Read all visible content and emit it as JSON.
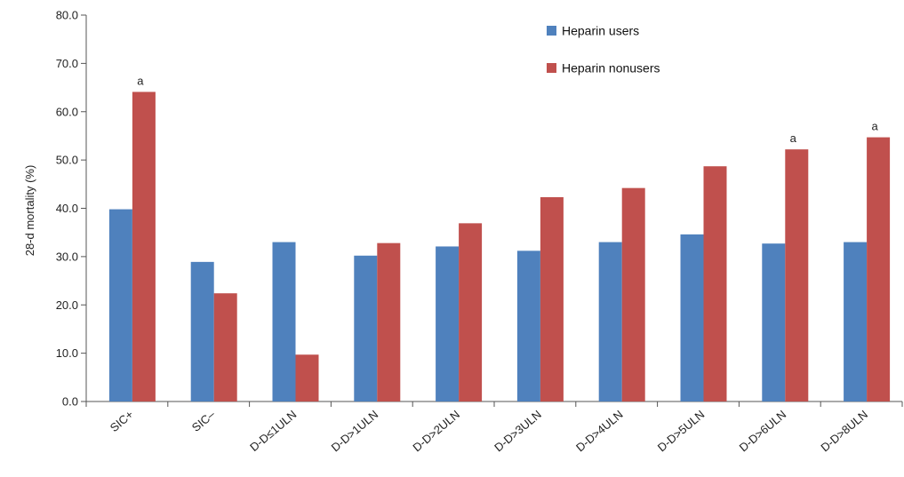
{
  "chart_data": {
    "type": "bar",
    "title": "",
    "xlabel": "",
    "ylabel": "28-d mortality (%)",
    "ylim": [
      0,
      80
    ],
    "yticks": [
      "0.0",
      "10.0",
      "20.0",
      "30.0",
      "40.0",
      "50.0",
      "60.0",
      "70.0",
      "80.0"
    ],
    "categories": [
      "SIC+",
      "SIC–",
      "D-D≤1ULN",
      "D-D>1ULN",
      "D-D>2ULN",
      "D-D>3ULN",
      "D-D>4ULN",
      "D-D>5ULN",
      "D-D>6ULN",
      "D-D>8ULN"
    ],
    "series": [
      {
        "name": "Heparin users",
        "color": "#4f81bd",
        "values": [
          39.8,
          28.9,
          33.0,
          30.2,
          32.1,
          31.2,
          33.0,
          34.6,
          32.7,
          33.0
        ]
      },
      {
        "name": "Heparin nonusers",
        "color": "#c0504d",
        "values": [
          64.1,
          22.4,
          9.7,
          32.8,
          36.9,
          42.3,
          44.2,
          48.7,
          52.2,
          54.7
        ]
      }
    ],
    "annotations": [
      {
        "category": "SIC+",
        "series": "Heparin nonusers",
        "text": "a"
      },
      {
        "category": "D-D>6ULN",
        "series": "Heparin nonusers",
        "text": "a"
      },
      {
        "category": "D-D>8ULN",
        "series": "Heparin nonusers",
        "text": "a"
      }
    ],
    "legend_position": "top-right",
    "grid": false
  }
}
